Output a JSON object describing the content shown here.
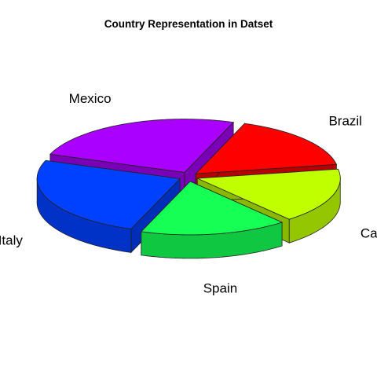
{
  "chart_data": {
    "type": "pie",
    "style": "3d-exploded",
    "title": "Country Representation in Datset",
    "slices": [
      {
        "label": "Brazil",
        "value": 1,
        "color": "#FF0000"
      },
      {
        "label": "Mexico",
        "value": 1.5,
        "color": "#AA00FF"
      },
      {
        "label": "Italy",
        "value": 1.5,
        "color": "#0040FF"
      },
      {
        "label": "Spain",
        "value": 1,
        "color": "#15FF55"
      },
      {
        "label": "Canada",
        "value": 1,
        "color": "#BFFF00"
      }
    ]
  }
}
